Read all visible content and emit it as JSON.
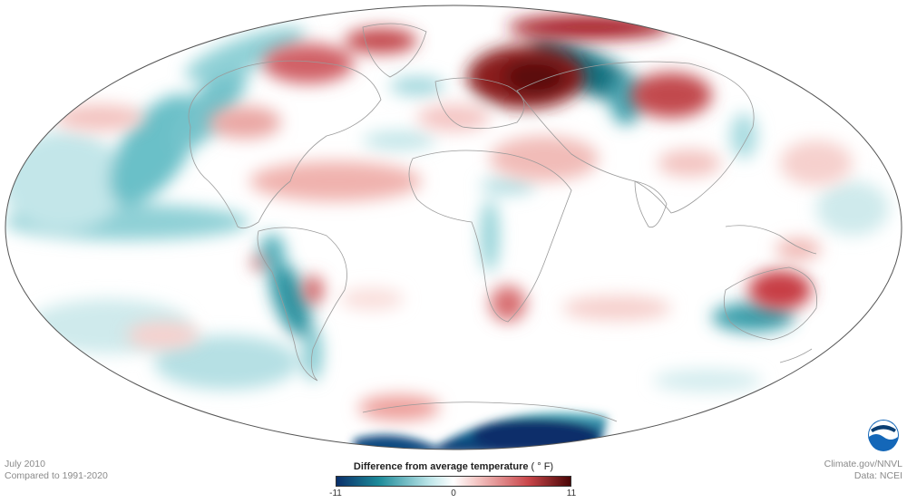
{
  "map": {
    "projection": "Robinson-like world map",
    "date_label": "July 2010",
    "baseline_label": "Compared to 1991-2020",
    "credit_label": "Climate.gov/NNVL",
    "data_label": "Data: NCEI"
  },
  "legend": {
    "title": "Difference from average temperature",
    "unit": "( ° F)",
    "min_label": "-11",
    "mid_label": "0",
    "max_label": "11",
    "scale": [
      -11,
      0,
      11
    ],
    "colors": [
      "#0a2f6b",
      "#1c8a99",
      "#bfe7ea",
      "#ffffff",
      "#f4c6c4",
      "#c9464a",
      "#4a0606"
    ]
  },
  "logo": {
    "text": "NOAA",
    "color": "#1467b8"
  },
  "colors": {
    "ocean_neutral": "#ffffff",
    "cool_light": "#cde9eb",
    "cool_mid": "#68b9c2",
    "cool_dark": "#0f6a7a",
    "cool_deep": "#0a3b78",
    "warm_light": "#f7d6d3",
    "warm_mid": "#e08a86",
    "warm_dark": "#a8232b",
    "warm_deep": "#5a0a0a",
    "outline": "#555555",
    "borders": "#9a9a9a"
  }
}
